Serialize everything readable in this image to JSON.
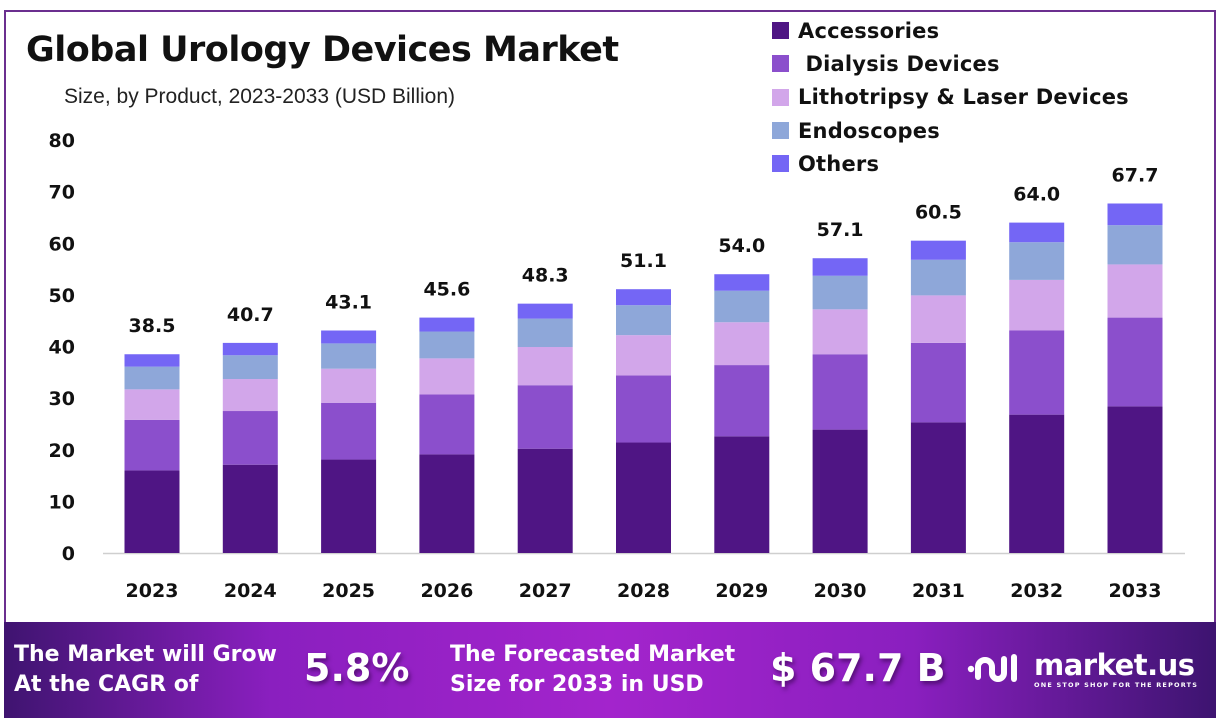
{
  "header": {
    "title": "Global Urology Devices Market",
    "subtitle": "Size, by Product, 2023-2033 (USD Billion)"
  },
  "chart_data": {
    "type": "bar",
    "stacked": true,
    "title": "Global Urology Devices Market",
    "subtitle": "Size, by Product, 2023-2033 (USD Billion)",
    "xlabel": "",
    "ylabel": "",
    "ylim": [
      0,
      80
    ],
    "yticks": [
      0,
      10,
      20,
      30,
      40,
      50,
      60,
      70,
      80
    ],
    "grid": false,
    "legend_position": "top-right",
    "categories": [
      "2023",
      "2024",
      "2025",
      "2026",
      "2027",
      "2028",
      "2029",
      "2030",
      "2031",
      "2032",
      "2033"
    ],
    "totals": [
      38.5,
      40.7,
      43.1,
      45.6,
      48.3,
      51.1,
      54.0,
      57.1,
      60.5,
      64.0,
      67.7
    ],
    "total_labels": [
      "38.5",
      "40.7",
      "43.1",
      "45.6",
      "48.3",
      "51.1",
      "54.0",
      "57.1",
      "60.5",
      "64.0",
      "67.7"
    ],
    "series": [
      {
        "name": "Accessories",
        "color": "#4f1584",
        "values": [
          16.0,
          17.1,
          18.1,
          19.1,
          20.2,
          21.4,
          22.6,
          23.9,
          25.3,
          26.8,
          28.4
        ]
      },
      {
        "name": "Dialysis Devices",
        "color": "#8b4fcc",
        "values": [
          9.8,
          10.4,
          11.0,
          11.6,
          12.3,
          13.0,
          13.8,
          14.6,
          15.4,
          16.3,
          17.2
        ]
      },
      {
        "name": "Lithotripsy & Laser Devices",
        "color": "#d2a6ea",
        "values": [
          5.9,
          6.2,
          6.6,
          7.0,
          7.4,
          7.8,
          8.3,
          8.7,
          9.2,
          9.8,
          10.3
        ]
      },
      {
        "name": "Endoscopes",
        "color": "#8ea7d9",
        "values": [
          4.4,
          4.6,
          4.9,
          5.2,
          5.5,
          5.8,
          6.1,
          6.5,
          6.9,
          7.3,
          7.6
        ]
      },
      {
        "name": "Others",
        "color": "#7466f5",
        "values": [
          2.4,
          2.4,
          2.5,
          2.7,
          2.9,
          3.1,
          3.2,
          3.4,
          3.7,
          3.8,
          4.2
        ]
      }
    ]
  },
  "legend": {
    "items": [
      {
        "label": "Accessories",
        "color": "#4f1584"
      },
      {
        "label": " Dialysis Devices",
        "color": "#8b4fcc"
      },
      {
        "label": "Lithotripsy & Laser Devices",
        "color": "#d2a6ea"
      },
      {
        "label": "Endoscopes",
        "color": "#8ea7d9"
      },
      {
        "label": "Others",
        "color": "#7466f5"
      }
    ]
  },
  "banner": {
    "cagr_text_line1": "The Market will Grow",
    "cagr_text_line2": "At the CAGR of",
    "cagr_value": "5.8%",
    "forecast_text_line1": "The Forecasted Market",
    "forecast_text_line2": "Size for 2033 in USD",
    "forecast_value": "$ 67.7 B",
    "logo_name": "market.us",
    "logo_tagline": "ONE STOP SHOP FOR THE REPORTS",
    "logo_icon": "market-us-logo-icon"
  }
}
